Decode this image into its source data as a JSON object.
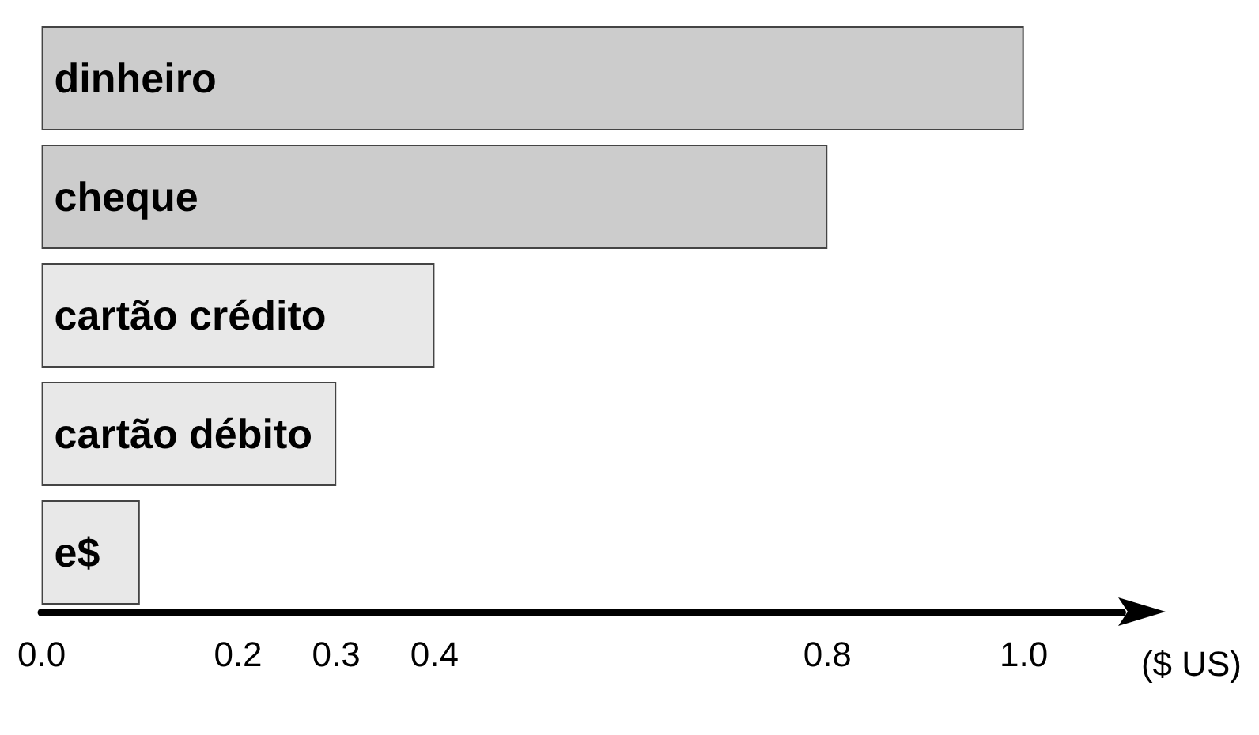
{
  "chart_data": {
    "type": "bar",
    "orientation": "horizontal",
    "categories": [
      "dinheiro",
      "cheque",
      "cartão crédito",
      "cartão débito",
      "e$"
    ],
    "values": [
      1.0,
      0.8,
      0.4,
      0.3,
      0.1
    ],
    "colors": [
      "#cccccc",
      "#cccccc",
      "#e8e8e8",
      "#e8e8e8",
      "#e8e8e8"
    ],
    "xlabel": "($ US)",
    "xlim": [
      0,
      1.1
    ],
    "xticks": [
      {
        "value": 0,
        "label": "0.0"
      },
      {
        "value": 0.2,
        "label": "0.2"
      },
      {
        "value": 0.3,
        "label": "0.3"
      },
      {
        "value": 0.4,
        "label": "0.4"
      },
      {
        "value": 0.8,
        "label": "0.8"
      },
      {
        "value": 1.0,
        "label": "1.0"
      }
    ],
    "grid": false
  }
}
